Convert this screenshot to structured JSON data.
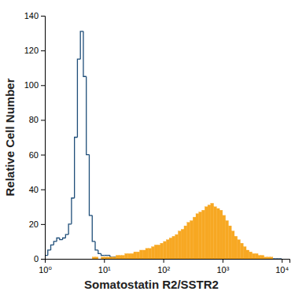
{
  "chart_data": {
    "type": "histogram",
    "x_label": "Somatostatin R2/SSTR2",
    "y_label": "Relative Cell Number",
    "log": "x",
    "xlim": [
      1,
      13500
    ],
    "ylim": [
      0,
      140
    ],
    "xticks": [
      {
        "value": 1,
        "label": "10⁰"
      },
      {
        "value": 10,
        "label": "10¹"
      },
      {
        "value": 100,
        "label": "10²"
      },
      {
        "value": 1000,
        "label": "10³"
      },
      {
        "value": 10000,
        "label": "10⁴"
      }
    ],
    "yticks": [
      0,
      20,
      40,
      60,
      80,
      100,
      120,
      140
    ],
    "bins": [
      1,
      1.122,
      1.259,
      1.413,
      1.585,
      1.778,
      1.995,
      2.239,
      2.512,
      2.818,
      3.162,
      3.548,
      3.981,
      4.467,
      5.012,
      5.623,
      6.31,
      7.079,
      7.943,
      8.913,
      10,
      11.22,
      12.59,
      14.13,
      15.85,
      17.78,
      19.95,
      22.39,
      25.12,
      28.18,
      31.62,
      35.48,
      39.81,
      44.67,
      50.12,
      56.23,
      63.1,
      70.79,
      79.43,
      89.13,
      100,
      112.2,
      125.9,
      141.3,
      158.5,
      177.8,
      199.5,
      223.9,
      251.2,
      281.8,
      316.2,
      354.8,
      398.1,
      446.7,
      501.2,
      562.3,
      631,
      707.9,
      794.3,
      891.3,
      1000,
      1122,
      1259,
      1413,
      1585,
      1778,
      1995,
      2239,
      2512,
      2818,
      3162,
      3548,
      3981,
      4467,
      5012,
      5623,
      6310,
      7079,
      7943,
      8913,
      10000
    ],
    "series": [
      {
        "type": "step",
        "color": "#1f4e79",
        "values": [
          2,
          5,
          8,
          10,
          12,
          11,
          12,
          14,
          20,
          35,
          70,
          115,
          131,
          105,
          60,
          25,
          10,
          5,
          3,
          2,
          2,
          2,
          1,
          1,
          1,
          1,
          0,
          0,
          0,
          0,
          0,
          0,
          0,
          0,
          0,
          0,
          0,
          0,
          0,
          0,
          0,
          0,
          0,
          0,
          0,
          0,
          0,
          0,
          0,
          0,
          0,
          0,
          0,
          0,
          0,
          0,
          0,
          0,
          0,
          0,
          0,
          0,
          0,
          0,
          0,
          0,
          0,
          0,
          0,
          0,
          0,
          0,
          0,
          0,
          0,
          0,
          0,
          0,
          0,
          0
        ]
      },
      {
        "type": "bar",
        "color": "#f7a823",
        "values": [
          0,
          0,
          0,
          0,
          0,
          0,
          0,
          0,
          0,
          0,
          0,
          0,
          0,
          0,
          0,
          0,
          1,
          1,
          0,
          1,
          1,
          1,
          1,
          1,
          2,
          2,
          2,
          3,
          3,
          3,
          4,
          4,
          5,
          5,
          6,
          6,
          7,
          8,
          8,
          9,
          10,
          11,
          12,
          13,
          14,
          16,
          17,
          19,
          21,
          22,
          24,
          26,
          27,
          28,
          30,
          31,
          32,
          30,
          29,
          28,
          25,
          22,
          19,
          16,
          13,
          11,
          9,
          7,
          5,
          4,
          3,
          3,
          2,
          2,
          1,
          1,
          1,
          0,
          0,
          0
        ]
      }
    ]
  }
}
